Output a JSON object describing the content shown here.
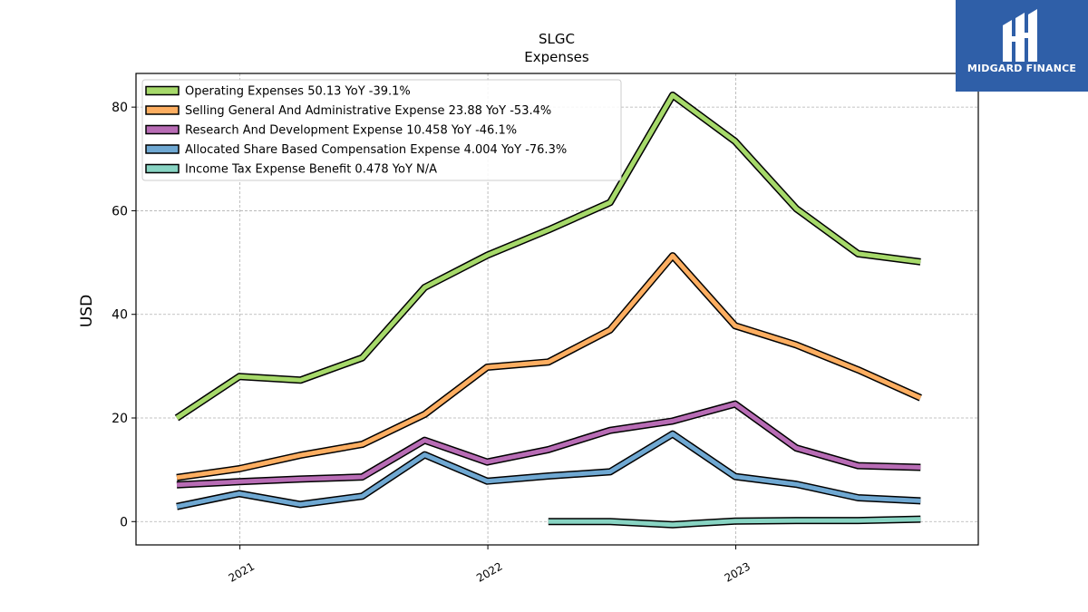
{
  "chart_data": {
    "type": "line",
    "title": "SLGC",
    "subtitle": "Expenses",
    "ylabel": "USD",
    "xlabel": "",
    "ylim": [
      -4.5,
      86.5
    ],
    "xlim": [
      "2020-08-01",
      "2023-12-24"
    ],
    "yticks": [
      0,
      20,
      40,
      60,
      80
    ],
    "xticks": [
      {
        "label": "2021",
        "date": "2021-01-01"
      },
      {
        "label": "2022",
        "date": "2022-01-01"
      },
      {
        "label": "2023",
        "date": "2023-01-01"
      }
    ],
    "grid": true,
    "legend_position": "top-left",
    "x": [
      "2020-09-30",
      "2020-12-31",
      "2021-03-31",
      "2021-06-30",
      "2021-09-30",
      "2021-12-31",
      "2022-03-31",
      "2022-06-30",
      "2022-09-30",
      "2022-12-31",
      "2023-03-31",
      "2023-06-30",
      "2023-09-30"
    ],
    "series": [
      {
        "name": "Operating Expenses",
        "legend": "Operating Expenses  50.13 YoY -39.1%",
        "color": "#a6d96a",
        "values": [
          20.0,
          28.0,
          27.3,
          31.6,
          45.2,
          51.4,
          56.3,
          61.6,
          82.3,
          73.4,
          60.4,
          51.7,
          50.13
        ]
      },
      {
        "name": "Selling General And Administrative Expense",
        "legend": "Selling General And Administrative Expense  23.88 YoY -53.4%",
        "color": "#fdae61",
        "values": [
          8.5,
          10.2,
          12.8,
          14.9,
          20.7,
          29.8,
          30.8,
          37.0,
          51.3,
          37.8,
          34.1,
          29.3,
          23.88
        ]
      },
      {
        "name": "Research And Development Expense",
        "legend": "Research And Development Expense  10.458 YoY -46.1%",
        "color": "#b86cb5",
        "values": [
          7.1,
          7.7,
          8.2,
          8.6,
          15.7,
          11.5,
          13.9,
          17.6,
          19.4,
          22.7,
          14.2,
          10.8,
          10.458
        ]
      },
      {
        "name": "Allocated Share Based Compensation Expense",
        "legend": "Allocated Share Based Compensation Expense  4.004 YoY -76.3%",
        "color": "#6fa8d2",
        "values": [
          2.9,
          5.4,
          3.3,
          4.9,
          12.9,
          7.8,
          8.8,
          9.6,
          16.9,
          8.7,
          7.2,
          4.6,
          4.004
        ]
      },
      {
        "name": "Income Tax Expense Benefit",
        "legend": "Income Tax Expense Benefit  0.478 YoY N/A",
        "color": "#88d4c3",
        "values": [
          null,
          null,
          null,
          null,
          null,
          null,
          0.0,
          0.0,
          -0.6,
          0.1,
          0.2,
          0.2,
          0.478
        ]
      }
    ]
  },
  "logo": {
    "text": "MIDGARD FINANCE"
  }
}
